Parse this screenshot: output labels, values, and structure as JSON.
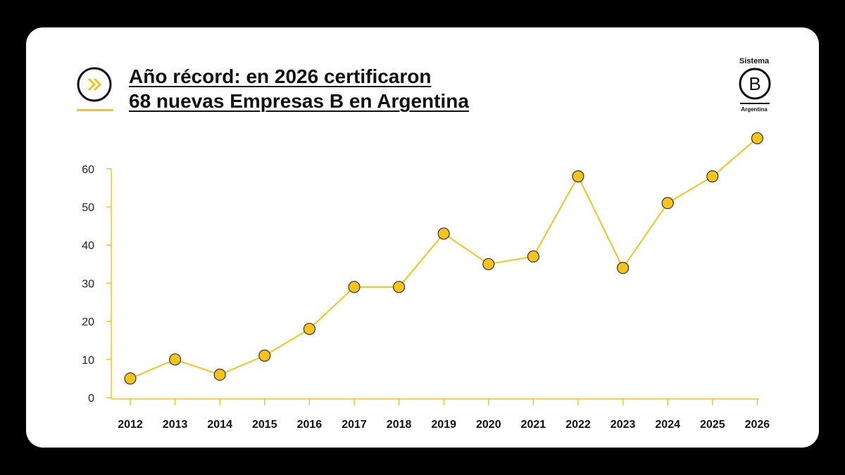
{
  "header": {
    "title_line1": "Año récord: en 2026 certificaron",
    "title_line2": "68 nuevas Empresas B en Argentina",
    "icon": "double-chevron-right-icon"
  },
  "logo": {
    "top_text": "Sistema",
    "mark": "B",
    "bottom_text": "Argentina"
  },
  "colors": {
    "accent": "#f5c31a",
    "marker_fill": "#f5c31a",
    "marker_stroke": "#333333",
    "background": "#000000",
    "card": "#ffffff"
  },
  "chart_data": {
    "type": "line",
    "title": "Año récord: en 2026 certificaron 68 nuevas Empresas B en Argentina",
    "xlabel": "",
    "ylabel": "",
    "categories": [
      "2012",
      "2013",
      "2014",
      "2015",
      "2016",
      "2017",
      "2018",
      "2019",
      "2020",
      "2021",
      "2022",
      "2023",
      "2024",
      "2025",
      "2026"
    ],
    "series": [
      {
        "values": [
          5,
          10,
          6,
          11,
          18,
          29,
          29,
          43,
          35,
          37,
          58,
          34,
          51,
          58,
          68
        ]
      }
    ],
    "ylim": [
      0,
      60
    ],
    "yticks": [
      0,
      10,
      20,
      30,
      40,
      50,
      60
    ],
    "grid": false,
    "legend": "none"
  }
}
